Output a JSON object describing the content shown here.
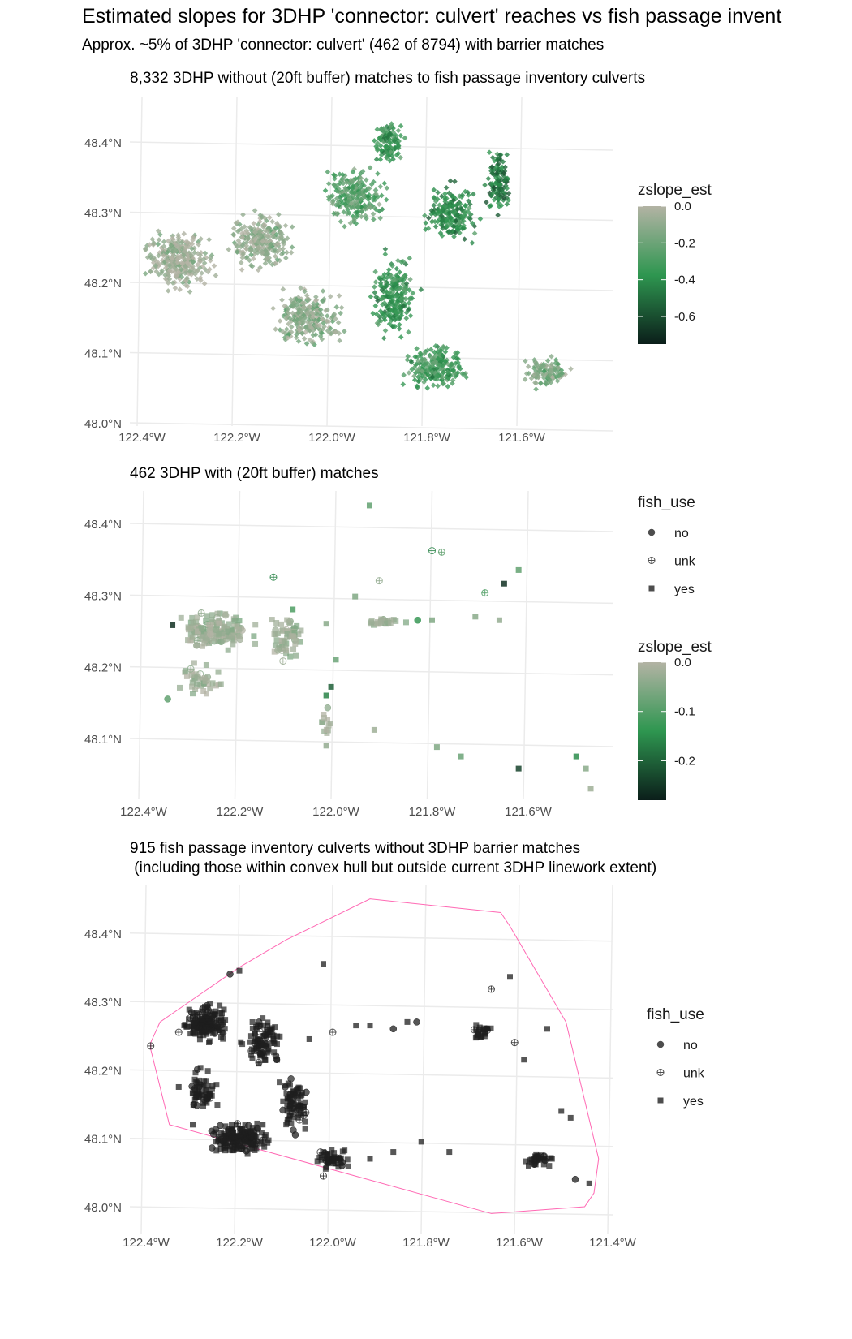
{
  "figure": {
    "title": "Estimated slopes for 3DHP 'connector: culvert' reaches vs fish passage invent",
    "subtitle": "Approx. ~5% of 3DHP 'connector: culvert' (462 of 8794) with barrier matches"
  },
  "colors": {
    "grid": "#ebebeb",
    "tick_text": "#4d4d4d",
    "gradient_top": "#b3b3a4",
    "gradient_mid": "#2e9650",
    "gradient_bottom": "#0b1e1a",
    "point_dark": "#1e1e1e",
    "hull": "#ff69b4"
  },
  "panels": [
    {
      "title": "8,332 3DHP without (20ft buffer) matches to fish passage inventory culverts",
      "x_ticks": [
        "122.4°W",
        "122.2°W",
        "122.0°W",
        "121.8°W",
        "121.6°W"
      ],
      "y_ticks": [
        "48.0°N",
        "48.1°N",
        "48.2°N",
        "48.3°N",
        "48.4°N"
      ],
      "legend": {
        "zslope_title": "zslope_est",
        "zslope_labels": [
          "0.0",
          "-0.2",
          "-0.4",
          "-0.6"
        ]
      }
    },
    {
      "title": "462 3DHP with (20ft buffer) matches",
      "x_ticks": [
        "122.4°W",
        "122.2°W",
        "122.0°W",
        "121.8°W",
        "121.6°W"
      ],
      "y_ticks": [
        "48.1°N",
        "48.2°N",
        "48.3°N",
        "48.4°N"
      ],
      "legend": {
        "fish_use_title": "fish_use",
        "fish_use_items": [
          "no",
          "unk",
          "yes"
        ],
        "zslope_title": "zslope_est",
        "zslope_labels": [
          "0.0",
          "-0.1",
          "-0.2"
        ]
      }
    },
    {
      "title": "915 fish passage inventory culverts without 3DHP barrier matches\n (including those within convex hull but outside current 3DHP linework extent)",
      "x_ticks": [
        "122.4°W",
        "122.2°W",
        "122.0°W",
        "121.8°W",
        "121.6°W",
        "121.4°W"
      ],
      "y_ticks": [
        "48.0°N",
        "48.1°N",
        "48.2°N",
        "48.3°N",
        "48.4°N"
      ],
      "legend": {
        "fish_use_title": "fish_use",
        "fish_use_items": [
          "no",
          "unk",
          "yes"
        ]
      }
    }
  ],
  "chart_data": [
    {
      "type": "scatter",
      "title": "8,332 3DHP without (20ft buffer) matches to fish passage inventory culverts",
      "xlabel": "",
      "ylabel": "",
      "xlim": [
        -122.42,
        -121.45
      ],
      "ylim": [
        48.0,
        48.45
      ],
      "color_scale": {
        "variable": "zslope_est",
        "range": [
          -0.75,
          0.0
        ],
        "breaks": [
          0.0,
          -0.2,
          -0.4,
          -0.6
        ]
      },
      "series": [
        {
          "values_summary": "approx. 8,332 diamond points; west lobe near 0.0 (grey), north and southeast lobes down to about -0.6 (dark green)"
        }
      ],
      "regions": [
        {
          "x": -122.32,
          "y": 48.23,
          "z_typical": -0.05
        },
        {
          "x": -122.15,
          "y": 48.26,
          "z_typical": -0.08
        },
        {
          "x": -122.05,
          "y": 48.15,
          "z_typical": -0.1
        },
        {
          "x": -121.95,
          "y": 48.32,
          "z_typical": -0.25
        },
        {
          "x": -121.88,
          "y": 48.4,
          "z_typical": -0.35
        },
        {
          "x": -121.75,
          "y": 48.3,
          "z_typical": -0.4
        },
        {
          "x": -121.65,
          "y": 48.34,
          "z_typical": -0.45
        },
        {
          "x": -121.87,
          "y": 48.18,
          "z_typical": -0.35
        },
        {
          "x": -121.78,
          "y": 48.08,
          "z_typical": -0.3
        },
        {
          "x": -121.55,
          "y": 48.07,
          "z_typical": -0.15
        }
      ]
    },
    {
      "type": "scatter",
      "title": "462 3DHP with (20ft buffer) matches",
      "xlabel": "",
      "ylabel": "",
      "xlim": [
        -122.42,
        -121.45
      ],
      "ylim": [
        48.01,
        48.45
      ],
      "color_scale": {
        "variable": "zslope_est",
        "range": [
          -0.26,
          0.0
        ],
        "breaks": [
          0.0,
          -0.1,
          -0.2
        ]
      },
      "shape_scale": {
        "variable": "fish_use",
        "levels": [
          "no",
          "unk",
          "yes"
        ]
      },
      "points": [
        {
          "x": -121.93,
          "y": 48.425,
          "z": -0.08,
          "f": "yes"
        },
        {
          "x": -121.8,
          "y": 48.362,
          "z": -0.15,
          "f": "unk"
        },
        {
          "x": -121.78,
          "y": 48.36,
          "z": -0.08,
          "f": "unk"
        },
        {
          "x": -121.91,
          "y": 48.32,
          "z": -0.03,
          "f": "unk"
        },
        {
          "x": -121.62,
          "y": 48.335,
          "z": -0.08,
          "f": "yes"
        },
        {
          "x": -121.65,
          "y": 48.316,
          "z": -0.24,
          "f": "yes"
        },
        {
          "x": -121.69,
          "y": 48.303,
          "z": -0.1,
          "f": "unk"
        },
        {
          "x": -122.13,
          "y": 48.325,
          "z": -0.15,
          "f": "unk"
        },
        {
          "x": -122.34,
          "y": 48.258,
          "z": -0.24,
          "f": "yes"
        },
        {
          "x": -122.28,
          "y": 48.275,
          "z": -0.03,
          "f": "unk"
        },
        {
          "x": -122.09,
          "y": 48.28,
          "z": -0.1,
          "f": "yes"
        },
        {
          "x": -122.02,
          "y": 48.26,
          "z": -0.04,
          "f": "yes"
        },
        {
          "x": -121.96,
          "y": 48.298,
          "z": -0.05,
          "f": "yes"
        },
        {
          "x": -121.83,
          "y": 48.265,
          "z": -0.12,
          "f": "no"
        },
        {
          "x": -121.8,
          "y": 48.265,
          "z": -0.05,
          "f": "yes"
        },
        {
          "x": -121.71,
          "y": 48.27,
          "z": -0.04,
          "f": "yes"
        },
        {
          "x": -121.66,
          "y": 48.265,
          "z": -0.03,
          "f": "yes"
        },
        {
          "x": -122.11,
          "y": 48.208,
          "z": -0.02,
          "f": "unk"
        },
        {
          "x": -122.0,
          "y": 48.21,
          "z": -0.07,
          "f": "yes"
        },
        {
          "x": -122.02,
          "y": 48.16,
          "z": -0.15,
          "f": "yes"
        },
        {
          "x": -122.01,
          "y": 48.172,
          "z": -0.19,
          "f": "yes"
        },
        {
          "x": -122.35,
          "y": 48.155,
          "z": -0.08,
          "f": "no"
        },
        {
          "x": -122.02,
          "y": 48.09,
          "z": -0.03,
          "f": "yes"
        },
        {
          "x": -121.92,
          "y": 48.112,
          "z": -0.02,
          "f": "yes"
        },
        {
          "x": -121.79,
          "y": 48.088,
          "z": -0.05,
          "f": "yes"
        },
        {
          "x": -121.74,
          "y": 48.075,
          "z": -0.07,
          "f": "yes"
        },
        {
          "x": -121.62,
          "y": 48.058,
          "z": -0.22,
          "f": "yes"
        },
        {
          "x": -121.5,
          "y": 48.075,
          "z": -0.14,
          "f": "yes"
        },
        {
          "x": -121.48,
          "y": 48.058,
          "z": -0.04,
          "f": "yes"
        },
        {
          "x": -121.47,
          "y": 48.03,
          "z": -0.02,
          "f": "yes"
        }
      ]
    },
    {
      "type": "scatter",
      "title": "915 fish passage inventory culverts without 3DHP barrier matches\n (including those within convex hull but outside current 3DHP linework extent)",
      "xlabel": "",
      "ylabel": "",
      "xlim": [
        -122.42,
        -121.43
      ],
      "ylim": [
        47.98,
        48.46
      ],
      "shape_scale": {
        "variable": "fish_use",
        "levels": [
          "no",
          "unk",
          "yes"
        ]
      },
      "convex_hull": [
        [
          -122.39,
          48.24
        ],
        [
          -122.37,
          48.27
        ],
        [
          -122.2,
          48.35
        ],
        [
          -122.1,
          48.39
        ],
        [
          -121.92,
          48.45
        ],
        [
          -121.64,
          48.43
        ],
        [
          -121.62,
          48.41
        ],
        [
          -121.5,
          48.27
        ],
        [
          -121.43,
          48.07
        ],
        [
          -121.44,
          48.02
        ],
        [
          -121.46,
          48.0
        ],
        [
          -121.66,
          47.99
        ],
        [
          -122.35,
          48.12
        ],
        [
          -122.39,
          48.23
        ]
      ],
      "points": [
        {
          "x": -122.02,
          "y": 48.355,
          "f": "yes"
        },
        {
          "x": -121.66,
          "y": 48.318,
          "f": "unk"
        },
        {
          "x": -121.62,
          "y": 48.336,
          "f": "yes"
        },
        {
          "x": -121.48,
          "y": 48.04,
          "f": "no"
        },
        {
          "x": -121.45,
          "y": 48.034,
          "f": "yes"
        },
        {
          "x": -121.51,
          "y": 48.14,
          "f": "yes"
        },
        {
          "x": -121.49,
          "y": 48.13,
          "f": "yes"
        },
        {
          "x": -121.54,
          "y": 48.26,
          "f": "yes"
        },
        {
          "x": -121.61,
          "y": 48.24,
          "f": "unk"
        },
        {
          "x": -121.59,
          "y": 48.215,
          "f": "yes"
        },
        {
          "x": -121.67,
          "y": 48.26,
          "f": "no"
        },
        {
          "x": -121.58,
          "y": 48.06,
          "f": "yes"
        },
        {
          "x": -121.53,
          "y": 48.07,
          "f": "yes"
        },
        {
          "x": -121.84,
          "y": 48.27,
          "f": "yes"
        },
        {
          "x": -121.82,
          "y": 48.27,
          "f": "no"
        },
        {
          "x": -121.92,
          "y": 48.265,
          "f": "yes"
        },
        {
          "x": -121.87,
          "y": 48.26,
          "f": "no"
        },
        {
          "x": -121.95,
          "y": 48.265,
          "f": "yes"
        },
        {
          "x": -122.0,
          "y": 48.255,
          "f": "unk"
        },
        {
          "x": -122.05,
          "y": 48.245,
          "f": "yes"
        },
        {
          "x": -121.81,
          "y": 48.095,
          "f": "yes"
        },
        {
          "x": -121.75,
          "y": 48.08,
          "f": "yes"
        },
        {
          "x": -121.87,
          "y": 48.08,
          "f": "yes"
        },
        {
          "x": -121.98,
          "y": 48.06,
          "f": "no"
        },
        {
          "x": -122.02,
          "y": 48.045,
          "f": "unk"
        },
        {
          "x": -121.92,
          "y": 48.07,
          "f": "yes"
        },
        {
          "x": -122.33,
          "y": 48.255,
          "f": "unk"
        },
        {
          "x": -122.39,
          "y": 48.235,
          "f": "unk"
        },
        {
          "x": -122.22,
          "y": 48.34,
          "f": "no"
        },
        {
          "x": -122.2,
          "y": 48.345,
          "f": "yes"
        },
        {
          "x": -122.12,
          "y": 48.215,
          "f": "no"
        },
        {
          "x": -122.15,
          "y": 48.12,
          "f": "yes"
        },
        {
          "x": -122.08,
          "y": 48.105,
          "f": "no"
        },
        {
          "x": -122.3,
          "y": 48.12,
          "f": "yes"
        },
        {
          "x": -122.33,
          "y": 48.175,
          "f": "yes"
        }
      ]
    }
  ]
}
